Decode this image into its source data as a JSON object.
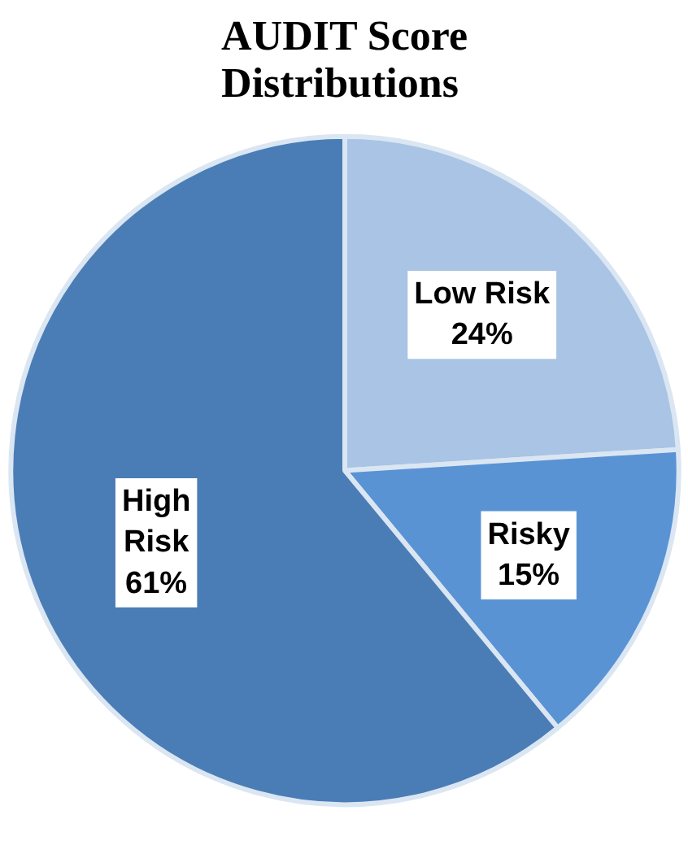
{
  "chart_data": {
    "type": "pie",
    "title": "AUDIT Score\nDistributions",
    "categories": [
      "Low Risk",
      "Risky",
      "High Risk"
    ],
    "values": [
      24,
      15,
      61
    ],
    "value_labels": [
      "24%",
      "15%",
      "61%"
    ],
    "colors": [
      "#a9c4e4",
      "#5a93d4",
      "#4a7db5"
    ],
    "legend": false
  }
}
